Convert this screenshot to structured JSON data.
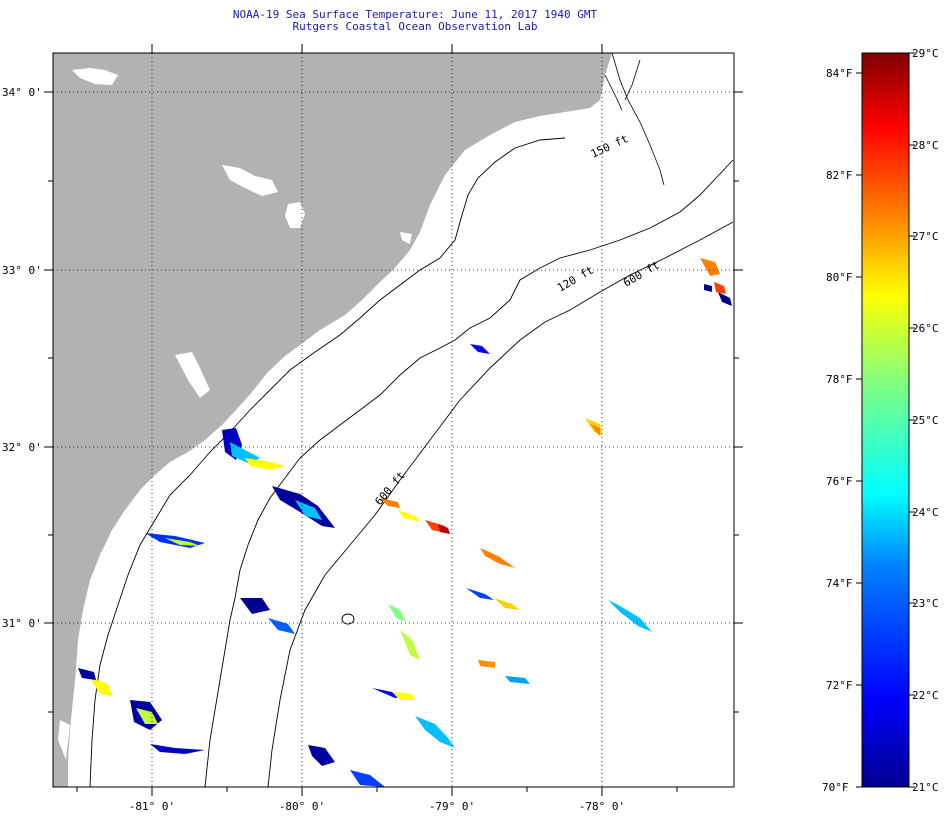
{
  "header": {
    "title": "NOAA-19 Sea Surface Temperature:  June 11, 2017 1940 GMT",
    "subtitle": "Rutgers Coastal Ocean Observation Lab"
  },
  "map": {
    "lon_labels": [
      "-81° 0'",
      "-80° 0'",
      "-79° 0'",
      "-78° 0'"
    ],
    "lat_labels": [
      "34° 0'",
      "33° 0'",
      "32° 0'",
      "31° 0'"
    ],
    "contour_labels": [
      "150 ft",
      "120 ft",
      "600 ft",
      "600 ft"
    ],
    "land_color": "#b2b2b2",
    "ocean_color": "#ffffff"
  },
  "colorbar": {
    "f_labels": [
      "84°F",
      "82°F",
      "80°F",
      "78°F",
      "76°F",
      "74°F",
      "72°F",
      "70°F"
    ],
    "c_labels": [
      "29°C",
      "28°C",
      "27°C",
      "26°C",
      "25°C",
      "24°C",
      "23°C",
      "22°C",
      "21°C"
    ],
    "colors": [
      "#00008f",
      "#0000ff",
      "#0080ff",
      "#00ffff",
      "#80ff80",
      "#ffff00",
      "#ff8000",
      "#ff0000",
      "#800000"
    ]
  }
}
